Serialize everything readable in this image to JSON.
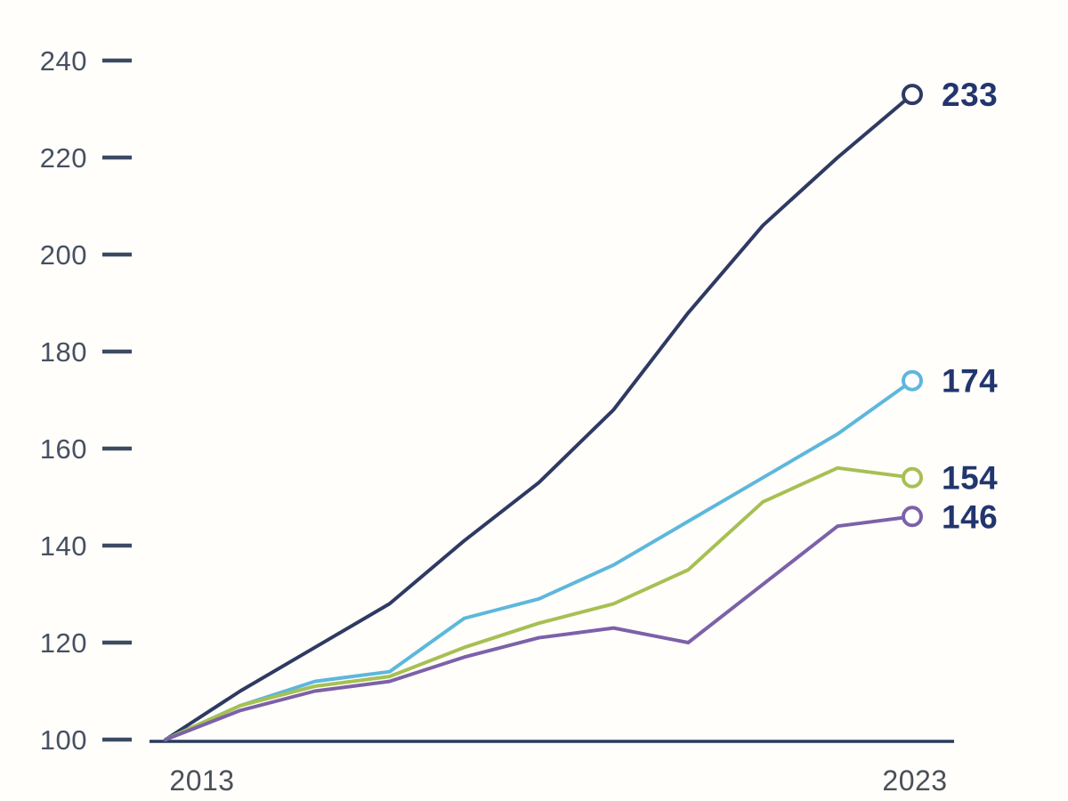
{
  "chart_data": {
    "type": "line",
    "title": "",
    "x": [
      2013,
      2014,
      2015,
      2016,
      2017,
      2018,
      2019,
      2020,
      2021,
      2022,
      2023
    ],
    "x_axis": {
      "labels_shown": [
        "2013",
        "2023"
      ],
      "first_label": "2013",
      "last_label": "2023"
    },
    "y_axis": {
      "ticks": [
        100,
        120,
        140,
        160,
        180,
        200,
        220,
        240
      ],
      "min": 100,
      "max": 240
    },
    "grid": false,
    "legend_position": "end-of-line-labels-right",
    "series": [
      {
        "name": "series-navy",
        "color": "#2e3a62",
        "end_label": "233",
        "values": [
          100,
          110,
          119,
          128,
          141,
          153,
          168,
          188,
          206,
          220,
          233
        ]
      },
      {
        "name": "series-light-blue",
        "color": "#5db7dd",
        "end_label": "174",
        "values": [
          100,
          107,
          112,
          114,
          125,
          129,
          136,
          145,
          154,
          163,
          174
        ]
      },
      {
        "name": "series-yellow-green",
        "color": "#a6c052",
        "end_label": "154",
        "values": [
          100,
          107,
          111,
          113,
          119,
          124,
          128,
          135,
          149,
          156,
          154
        ]
      },
      {
        "name": "series-purple",
        "color": "#7c61a9",
        "end_label": "146",
        "values": [
          100,
          106,
          110,
          112,
          117,
          121,
          123,
          120,
          132,
          144,
          146
        ]
      }
    ],
    "colors": {
      "axis_line": "#2b3a5c",
      "tick_dash": "#3c4a63",
      "tick_label": "#475062",
      "x_label": "#4a5058",
      "end_label": "#22356d",
      "marker_fill": "#ffffff"
    }
  }
}
